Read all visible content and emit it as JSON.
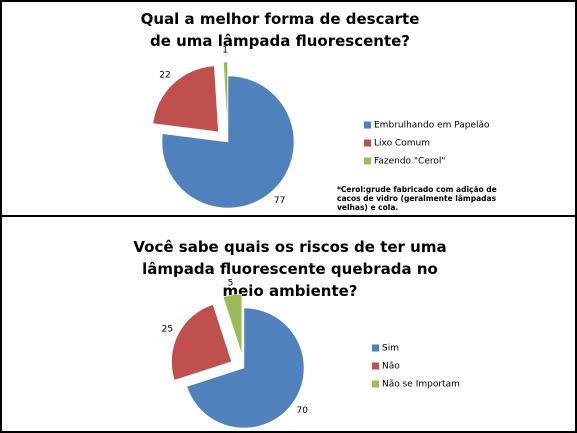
{
  "chart_data": [
    {
      "type": "pie",
      "title": "Qual a melhor forma de descarte de uma lâmpada fluorescente?",
      "categories": [
        "Embrulhando em Papelão",
        "Lixo Comum",
        "Fazendo \"Cerol\""
      ],
      "values": [
        77,
        22,
        1
      ],
      "colors": [
        "#4f81bd",
        "#c0504d",
        "#9bbb59"
      ],
      "annotation": "*Cerol:grude fabricado com adição de cacos de vidro (geralmente lâmpadas velhas) e cola."
    },
    {
      "type": "pie",
      "title": "Você sabe quais os riscos de ter uma lâmpada fluorescente quebrada no meio ambiente?",
      "categories": [
        "Sim",
        "Não",
        "Não se Importam"
      ],
      "values": [
        70,
        25,
        5
      ],
      "colors": [
        "#4f81bd",
        "#c0504d",
        "#9bbb59"
      ]
    }
  ]
}
